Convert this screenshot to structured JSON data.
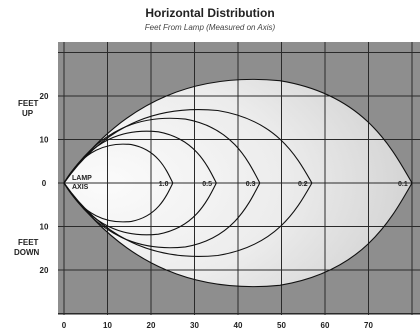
{
  "chart_data": {
    "type": "contour",
    "title": "Horizontal Distribution",
    "subtitle": "Feet From Lamp (Measured on Axis)",
    "y_label_up": [
      "FEET",
      "UP"
    ],
    "y_label_down": [
      "FEET",
      "DOWN"
    ],
    "lamp_label": [
      "LAMP",
      "AXIS"
    ],
    "x_ticks": [
      "0",
      "10",
      "20",
      "30",
      "40",
      "50",
      "60",
      "70"
    ],
    "y_ticks_up": [
      "20",
      "10"
    ],
    "y_ticks_center": "0",
    "y_ticks_down": [
      "10",
      "20"
    ],
    "xlim": [
      0,
      80
    ],
    "ylim": [
      -30,
      30
    ],
    "contours": [
      {
        "label": "1.0",
        "reach": 25,
        "up": 9,
        "down": 9
      },
      {
        "label": "0.5",
        "reach": 35,
        "up": 12,
        "down": 12
      },
      {
        "label": "0.3",
        "reach": 45,
        "up": 15,
        "down": 15
      },
      {
        "label": "0.2",
        "reach": 57,
        "up": 17,
        "down": 17
      },
      {
        "label": "0.1",
        "reach": 80,
        "up": 24,
        "down": 24
      }
    ],
    "colors": {
      "background": "#8e8e8e",
      "outer_fill": "#dcdcdc",
      "inner_fill": "#f7f7f7",
      "grid": "#2a2a2a",
      "line": "#111111"
    }
  }
}
